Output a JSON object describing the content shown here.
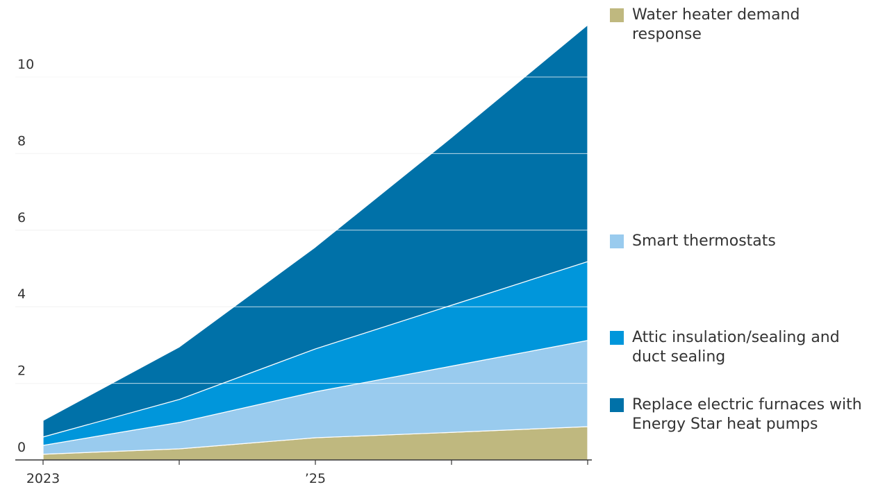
{
  "chart_data": {
    "type": "stacked-area",
    "categories": [
      "2023",
      null,
      "’25",
      null,
      null
    ],
    "series": [
      {
        "name": "Water heater demand response",
        "color": "#bfb87f",
        "values": [
          0.15,
          0.29,
          0.58,
          0.72,
          0.87
        ]
      },
      {
        "name": "Smart thermostats",
        "color": "#99cbee",
        "values": [
          0.23,
          0.69,
          1.2,
          1.73,
          2.25
        ]
      },
      {
        "name": "Attic insulation/sealing and duct sealing",
        "color": "#0096db",
        "values": [
          0.22,
          0.6,
          1.12,
          1.59,
          2.06
        ]
      },
      {
        "name": "Replace electric furnaces with Energy Star heat pumps",
        "color": "#0071a8",
        "values": [
          0.43,
          1.37,
          2.66,
          4.38,
          6.18
        ]
      }
    ],
    "ylim": [
      0,
      11.4
    ],
    "yticks": [
      0,
      2,
      4,
      6,
      8,
      10
    ],
    "grid": true
  }
}
